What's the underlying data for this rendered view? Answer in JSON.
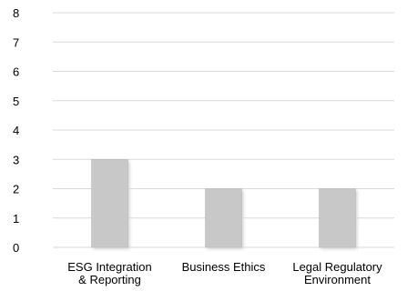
{
  "chart_data": {
    "type": "bar",
    "categories": [
      [
        "ESG Integration",
        "& Reporting"
      ],
      [
        "Business Ethics"
      ],
      [
        "Legal Regulatory",
        "Environment"
      ]
    ],
    "values": [
      3,
      2,
      2
    ],
    "ylim": [
      0,
      8
    ],
    "yticks": [
      0,
      1,
      2,
      3,
      4,
      5,
      6,
      7,
      8
    ],
    "grid": true,
    "legend": "none",
    "colors": {
      "bar": "#c8c8c8",
      "bar_edge": "#b4b4b4",
      "grid": "#d9d9d9",
      "text": "#000000"
    }
  }
}
